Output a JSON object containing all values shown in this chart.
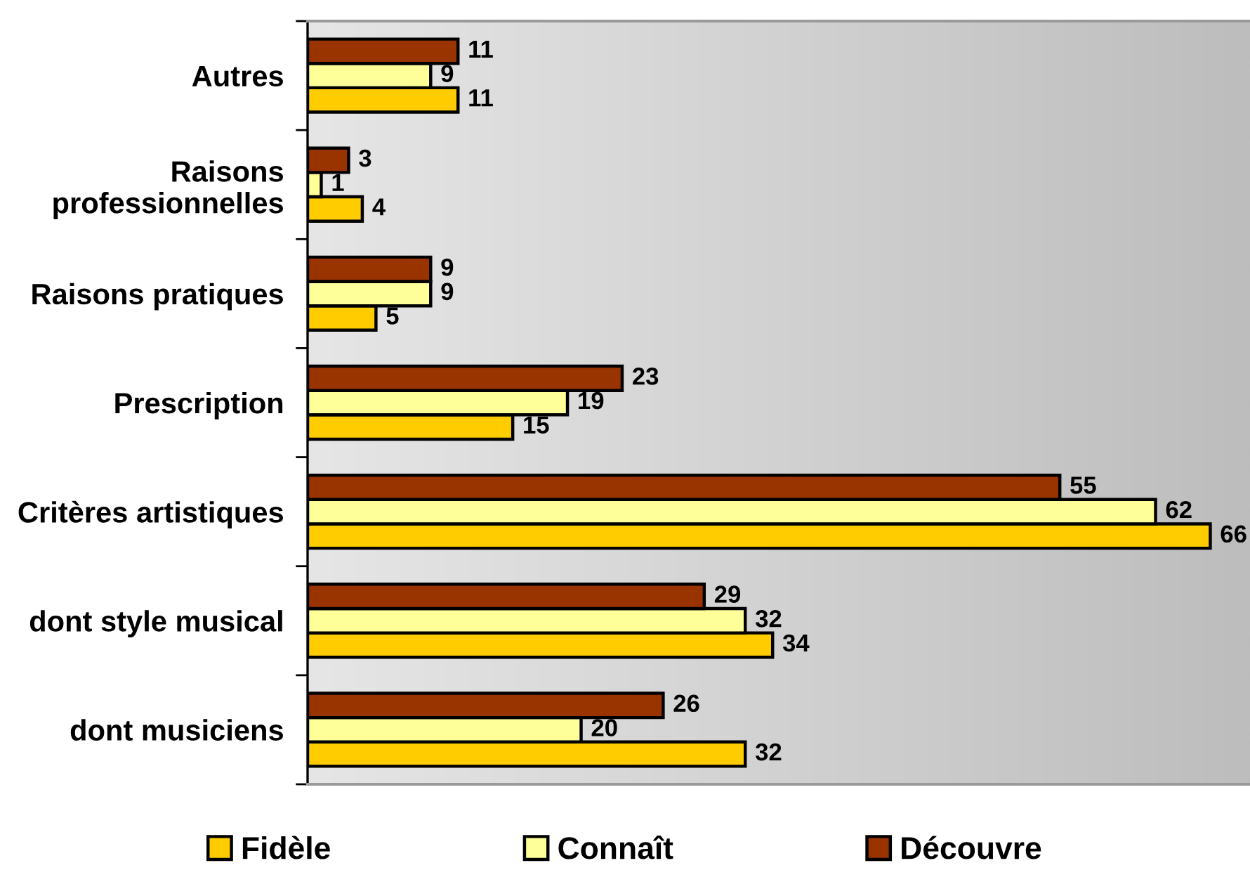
{
  "chart_data": {
    "type": "bar",
    "orientation": "horizontal",
    "categories": [
      "Autres",
      "Raisons\nprofessionnelles",
      "Raisons pratiques",
      "Prescription",
      "Critères artistiques",
      "dont style musical",
      "dont musiciens"
    ],
    "series": [
      {
        "name": "Fidèle",
        "color": "#ffcc00",
        "values": [
          11,
          4,
          5,
          15,
          66,
          34,
          32
        ]
      },
      {
        "name": "Connaît",
        "color": "#ffff99",
        "values": [
          9,
          1,
          9,
          19,
          62,
          32,
          20
        ]
      },
      {
        "name": "Découvre",
        "color": "#993300",
        "values": [
          11,
          3,
          9,
          23,
          55,
          29,
          26
        ]
      }
    ],
    "data_labels": true,
    "legend": "bottom",
    "grid": false,
    "tick_labels": "y"
  }
}
